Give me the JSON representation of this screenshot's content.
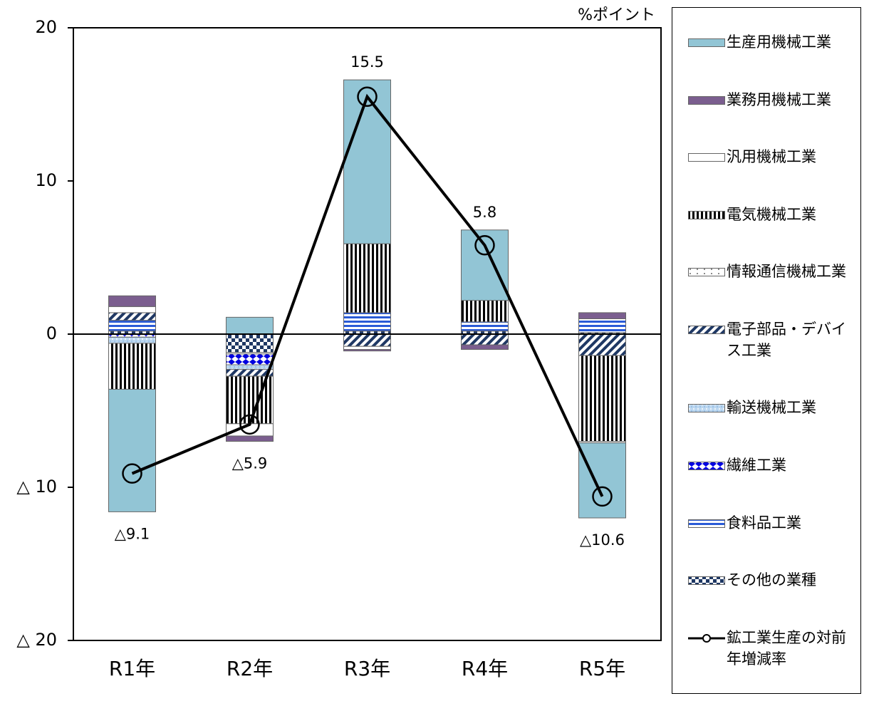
{
  "chart_data": {
    "type": "bar",
    "stacked": true,
    "unit": "%ポイント",
    "categories": [
      "R1年",
      "R2年",
      "R3年",
      "R4年",
      "R5年"
    ],
    "ylim": [
      -20,
      20
    ],
    "yticks": [
      {
        "value": -20,
        "label": "△ 20"
      },
      {
        "value": -10,
        "label": "△ 10"
      },
      0,
      10,
      20
    ],
    "series": [
      {
        "name": "生産用機械工業",
        "color": "#92c5d5",
        "pattern": "solid",
        "values": [
          -8.0,
          1.1,
          10.7,
          4.6,
          -4.9
        ]
      },
      {
        "name": "業務用機械工業",
        "color": "#7b5e8f",
        "pattern": "solid",
        "values": [
          0.7,
          -0.35,
          -0.1,
          -0.3,
          0.4
        ]
      },
      {
        "name": "汎用機械工業",
        "color": "#ffffff",
        "pattern": "solid",
        "values": [
          0.4,
          -0.8,
          -0.2,
          0,
          -0.1
        ]
      },
      {
        "name": "電気機械工業",
        "color": "#000000",
        "pattern": "vstripe",
        "values": [
          -3.0,
          -3.1,
          4.5,
          1.4,
          -5.6
        ]
      },
      {
        "name": "情報通信機械工業",
        "color": "#000000",
        "pattern": "dots",
        "values": [
          0,
          0,
          0,
          0,
          0
        ]
      },
      {
        "name": "電子部品・デバイス工業",
        "color": "#1f3864",
        "pattern": "diag",
        "values": [
          0.5,
          -0.45,
          -0.8,
          -0.7,
          -1.4
        ]
      },
      {
        "name": "輸送機械工業",
        "color": "#bcd7f0",
        "pattern": "speckle",
        "values": [
          -0.4,
          -0.3,
          0,
          0,
          0
        ]
      },
      {
        "name": "繊維工業",
        "color": "#0000e0",
        "pattern": "diamond",
        "values": [
          -0.2,
          -0.7,
          0,
          0,
          0
        ]
      },
      {
        "name": "食料品工業",
        "color": "#2a5bd7",
        "pattern": "hstripe",
        "values": [
          0.7,
          -0.1,
          1.2,
          0.6,
          0.9
        ]
      },
      {
        "name": "その他の業種",
        "color": "#1f3864",
        "pattern": "check",
        "values": [
          0.2,
          -1.2,
          0.2,
          0.2,
          0.1
        ]
      }
    ],
    "line": {
      "name": "鉱工業生産の対前年増減率",
      "color": "#000000",
      "values": [
        -9.1,
        -5.9,
        15.5,
        5.8,
        -10.6
      ],
      "value_labels": [
        "△9.1",
        "△5.9",
        "15.5",
        "5.8",
        "△10.6"
      ]
    }
  }
}
